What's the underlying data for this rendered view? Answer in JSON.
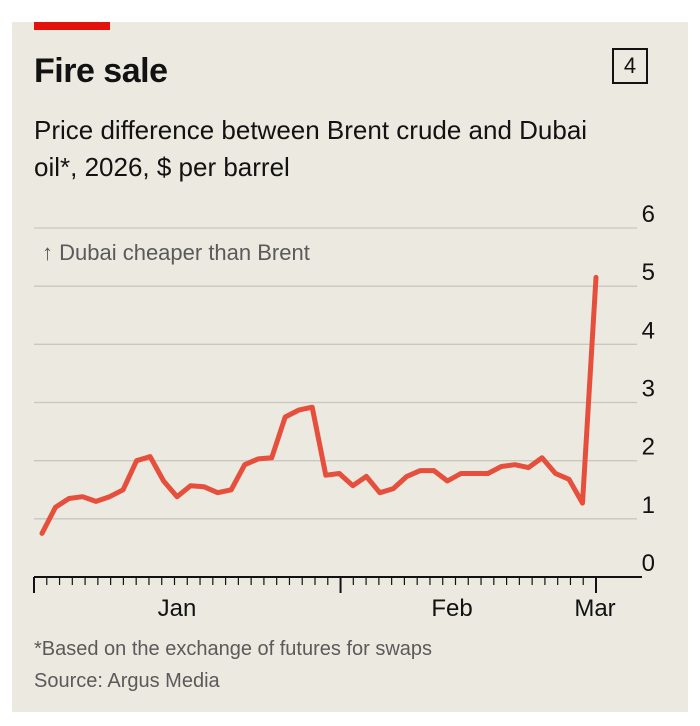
{
  "chart_data": {
    "type": "line",
    "title": "Fire sale",
    "subtitle": "Price difference between Brent crude and Dubai oil*, 2026, $ per barrel",
    "chart_number": "4",
    "annotation": "↑ Dubai cheaper than Brent",
    "ylim": [
      0,
      6
    ],
    "yticks": [
      "0",
      "1",
      "2",
      "3",
      "4",
      "5",
      "6"
    ],
    "x_ticks": [
      "Jan",
      "Feb",
      "Mar"
    ],
    "footnote": "*Based on the exchange of futures for swaps",
    "source": "Source: Argus Media",
    "line_color": "#e64f3c",
    "series": [
      {
        "name": "Brent minus Dubai",
        "values": [
          0.75,
          1.2,
          1.35,
          1.38,
          1.3,
          1.38,
          1.5,
          2.0,
          2.07,
          1.65,
          1.38,
          1.57,
          1.55,
          1.45,
          1.5,
          1.93,
          2.03,
          2.05,
          2.75,
          2.87,
          2.92,
          1.75,
          1.78,
          1.57,
          1.73,
          1.45,
          1.52,
          1.73,
          1.83,
          1.83,
          1.65,
          1.78,
          1.78,
          1.78,
          1.9,
          1.93,
          1.88,
          2.05,
          1.78,
          1.68,
          1.27,
          5.15
        ]
      }
    ]
  }
}
